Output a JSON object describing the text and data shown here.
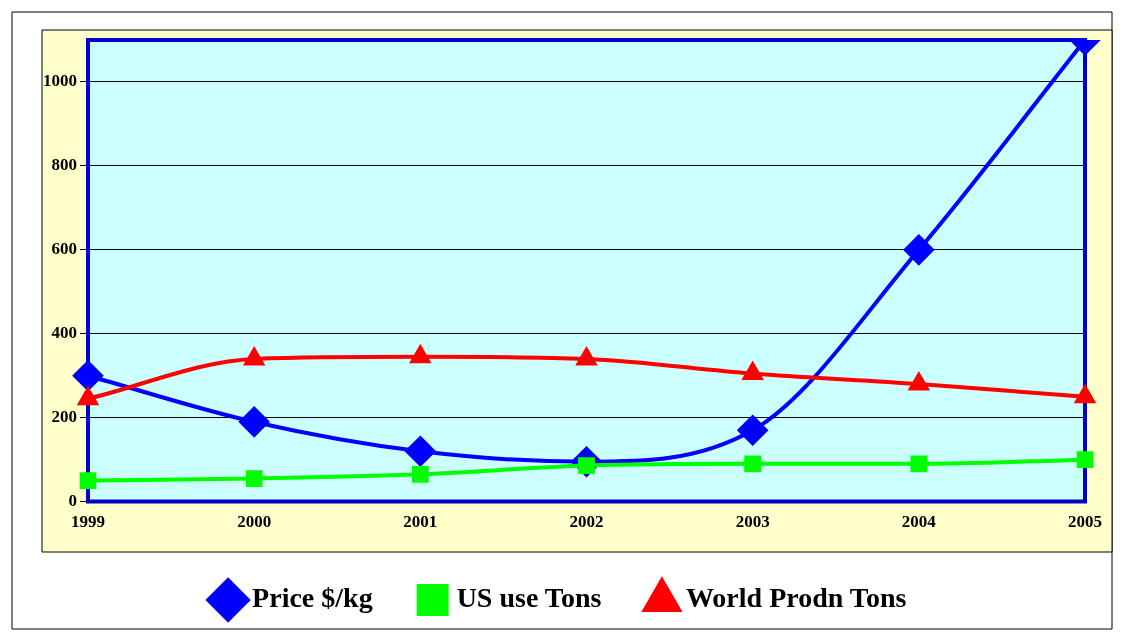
{
  "chart_data": {
    "type": "line",
    "categories": [
      "1999",
      "2000",
      "2001",
      "2002",
      "2003",
      "2004",
      "2005"
    ],
    "series": [
      {
        "name": "Price $/kg",
        "color": "#0000ff",
        "marker": "diamond",
        "values": [
          300,
          190,
          120,
          95,
          170,
          600,
          1100
        ]
      },
      {
        "name": "US use Tons",
        "color": "#00ff00",
        "marker": "square",
        "values": [
          50,
          55,
          65,
          86,
          90,
          90,
          100
        ]
      },
      {
        "name": "World Prodn Tons",
        "color": "#ff0000",
        "marker": "triangle",
        "values": [
          245,
          340,
          345,
          340,
          305,
          280,
          250
        ]
      }
    ],
    "ylim": [
      0,
      1100
    ],
    "yticks": [
      0,
      200,
      400,
      600,
      800,
      1000
    ],
    "grid": "y",
    "legend": "bottom",
    "line_style": "solid"
  }
}
